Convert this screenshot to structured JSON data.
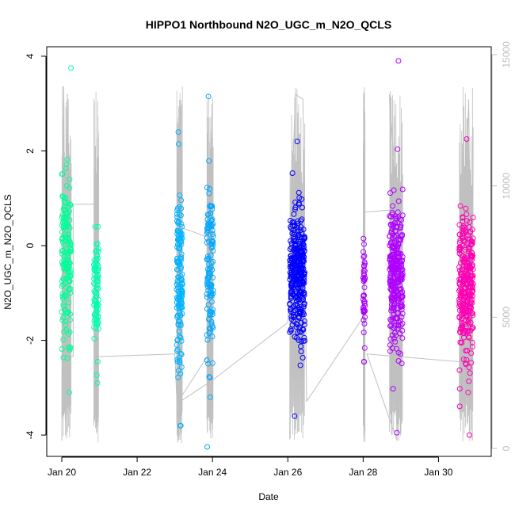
{
  "chart_data": {
    "type": "scatter",
    "title": "HIPPO1 Northbound N2O_UGC_m_N2O_QCLS",
    "xlabel": "Date",
    "ylabel": "N2O_UGC_m_N2O_QCLS",
    "x_axis": {
      "unit": "day of January",
      "range": [
        19.6,
        31.4
      ],
      "ticks": [
        20,
        22,
        24,
        26,
        28,
        30
      ],
      "tick_labels": [
        "Jan 20",
        "Jan 22",
        "Jan 24",
        "Jan 26",
        "Jan 28",
        "Jan 30"
      ]
    },
    "y_axis": {
      "range": [
        -4.45,
        4.2
      ],
      "ticks": [
        -4,
        -2,
        0,
        2,
        4
      ],
      "tick_labels": [
        "-4",
        "-2",
        "0",
        "2",
        "4"
      ]
    },
    "y2_axis": {
      "description": "altitude trace (gray line)",
      "range": [
        -300,
        15300
      ],
      "ticks": [
        0,
        5000,
        10000,
        15000
      ],
      "tick_labels": [
        "0",
        "5000",
        "10000",
        "15000"
      ],
      "color": "#bdbdbd"
    },
    "series": [
      {
        "color": "#00ff99",
        "x_range": [
          20.0,
          20.25
        ],
        "y_min": -3.1,
        "y_max": 3.75,
        "center": -0.3,
        "spread": 1.2,
        "n": 170
      },
      {
        "color": "#00ffb0",
        "x_range": [
          20.85,
          20.98
        ],
        "y_min": -2.9,
        "y_max": 0.4,
        "center": -1.0,
        "spread": 0.8,
        "n": 90
      },
      {
        "color": "#00b4ff",
        "x_range": [
          23.05,
          23.2
        ],
        "y_min": -3.8,
        "y_max": 2.4,
        "center": -0.8,
        "spread": 1.2,
        "n": 150
      },
      {
        "color": "#00a8ff",
        "x_range": [
          23.85,
          24.02
        ],
        "y_min": -4.25,
        "y_max": 3.15,
        "center": -0.5,
        "spread": 1.2,
        "n": 120
      },
      {
        "color": "#0000ff",
        "x_range": [
          26.05,
          26.45
        ],
        "y_min": -3.6,
        "y_max": 2.2,
        "center": -0.6,
        "spread": 0.9,
        "n": 330
      },
      {
        "color": "#a800ff",
        "x_range": [
          28.0,
          28.05
        ],
        "y_min": -2.45,
        "y_max": 0.15,
        "center": -1.0,
        "spread": 0.8,
        "n": 45
      },
      {
        "color": "#b000ff",
        "x_range": [
          28.7,
          29.05
        ],
        "y_min": -3.95,
        "y_max": 3.9,
        "center": -0.6,
        "spread": 1.0,
        "n": 300
      },
      {
        "color": "#ff00b4",
        "x_range": [
          30.55,
          30.92
        ],
        "y_min": -4.0,
        "y_max": 2.25,
        "center": -0.9,
        "spread": 1.0,
        "n": 300
      }
    ],
    "altitude_trace": {
      "color": "#c0c0c0",
      "key_points": [
        [
          20.0,
          300
        ],
        [
          20.05,
          13800
        ],
        [
          20.1,
          500
        ],
        [
          20.15,
          13500
        ],
        [
          20.22,
          3500
        ],
        [
          20.3,
          3500
        ],
        [
          20.3,
          9300
        ],
        [
          20.92,
          9300
        ],
        [
          20.96,
          3500
        ],
        [
          23.0,
          3600
        ],
        [
          23.1,
          300
        ],
        [
          23.15,
          12500
        ],
        [
          23.2,
          8400
        ],
        [
          23.97,
          8000
        ],
        [
          23.95,
          3700
        ],
        [
          23.05,
          1700
        ],
        [
          24.0,
          2600
        ],
        [
          26.0,
          4800
        ],
        [
          26.2,
          13500
        ],
        [
          26.4,
          13300
        ],
        [
          26.5,
          1800
        ],
        [
          28.05,
          5100
        ],
        [
          28.0,
          9000
        ],
        [
          28.9,
          9100
        ],
        [
          28.7,
          13500
        ],
        [
          28.9,
          300
        ],
        [
          28.1,
          3600
        ],
        [
          30.6,
          3300
        ],
        [
          30.8,
          13300
        ],
        [
          30.9,
          300
        ]
      ]
    },
    "grid": false,
    "legend": "none"
  }
}
